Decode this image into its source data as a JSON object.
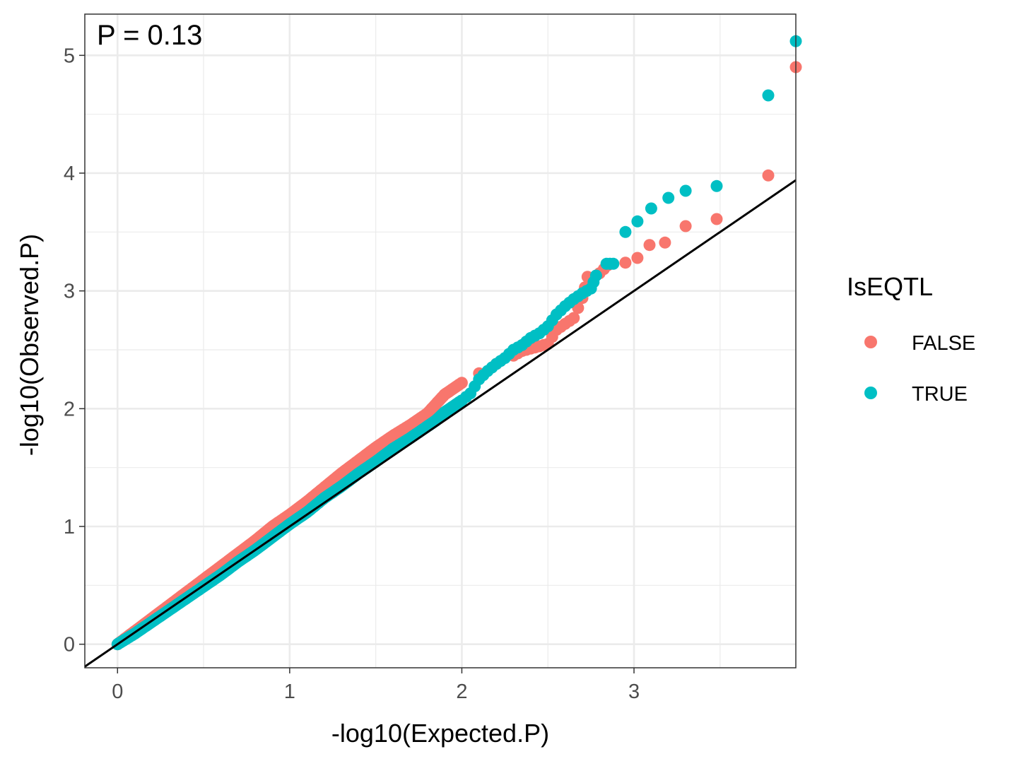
{
  "chart_data": {
    "type": "scatter",
    "title": "",
    "xlabel": "-log10(Expected.P)",
    "ylabel": "-log10(Observed.P)",
    "xlim": [
      -0.19,
      3.94
    ],
    "ylim": [
      -0.2,
      5.35
    ],
    "x_ticks": [
      0,
      1,
      2,
      3
    ],
    "y_ticks": [
      0,
      1,
      2,
      3,
      4,
      5
    ],
    "x_tick_labels": [
      "0",
      "1",
      "2",
      "3"
    ],
    "y_tick_labels": [
      "0",
      "1",
      "2",
      "3",
      "4",
      "5"
    ],
    "grid": true,
    "annotation": "P = 0.13",
    "reference_line": {
      "intercept": 0,
      "slope": 1,
      "color": "#000000"
    },
    "legend": {
      "title": "IsEQTL",
      "position": "right"
    },
    "series": [
      {
        "name": "FALSE",
        "color": "#F8766D",
        "points": [
          [
            0,
            0
          ],
          [
            0.1,
            0.11
          ],
          [
            0.2,
            0.22
          ],
          [
            0.3,
            0.33
          ],
          [
            0.4,
            0.44
          ],
          [
            0.5,
            0.55
          ],
          [
            0.6,
            0.66
          ],
          [
            0.7,
            0.77
          ],
          [
            0.8,
            0.88
          ],
          [
            0.9,
            1.0
          ],
          [
            1.0,
            1.1
          ],
          [
            1.1,
            1.21
          ],
          [
            1.2,
            1.33
          ],
          [
            1.3,
            1.45
          ],
          [
            1.4,
            1.56
          ],
          [
            1.5,
            1.67
          ],
          [
            1.6,
            1.77
          ],
          [
            1.7,
            1.86
          ],
          [
            1.8,
            1.96
          ],
          [
            1.9,
            2.12
          ],
          [
            2.0,
            2.22
          ],
          [
            2.1,
            2.3
          ],
          [
            2.2,
            2.38
          ],
          [
            2.3,
            2.45
          ],
          [
            2.35,
            2.49
          ],
          [
            2.4,
            2.51
          ],
          [
            2.45,
            2.53
          ],
          [
            2.5,
            2.55
          ],
          [
            2.55,
            2.67
          ],
          [
            2.6,
            2.72
          ],
          [
            2.65,
            2.77
          ],
          [
            2.7,
            2.94
          ],
          [
            2.73,
            3.12
          ],
          [
            2.8,
            3.15
          ],
          [
            2.85,
            3.22
          ],
          [
            2.95,
            3.24
          ],
          [
            3.02,
            3.28
          ],
          [
            3.09,
            3.39
          ],
          [
            3.18,
            3.41
          ],
          [
            3.3,
            3.55
          ],
          [
            3.48,
            3.61
          ],
          [
            3.78,
            3.98
          ],
          [
            3.94,
            4.9
          ]
        ]
      },
      {
        "name": "TRUE",
        "color": "#00BFC4",
        "points": [
          [
            0,
            0
          ],
          [
            0.1,
            0.09
          ],
          [
            0.2,
            0.19
          ],
          [
            0.3,
            0.29
          ],
          [
            0.4,
            0.39
          ],
          [
            0.5,
            0.49
          ],
          [
            0.6,
            0.59
          ],
          [
            0.7,
            0.7
          ],
          [
            0.8,
            0.8
          ],
          [
            0.9,
            0.91
          ],
          [
            1.0,
            1.02
          ],
          [
            1.1,
            1.12
          ],
          [
            1.2,
            1.24
          ],
          [
            1.3,
            1.34
          ],
          [
            1.4,
            1.45
          ],
          [
            1.5,
            1.55
          ],
          [
            1.6,
            1.66
          ],
          [
            1.7,
            1.75
          ],
          [
            1.8,
            1.85
          ],
          [
            1.85,
            1.9
          ],
          [
            1.9,
            1.97
          ],
          [
            2.0,
            2.07
          ],
          [
            2.05,
            2.13
          ],
          [
            2.1,
            2.25
          ],
          [
            2.15,
            2.32
          ],
          [
            2.2,
            2.38
          ],
          [
            2.25,
            2.43
          ],
          [
            2.3,
            2.5
          ],
          [
            2.35,
            2.54
          ],
          [
            2.4,
            2.6
          ],
          [
            2.45,
            2.64
          ],
          [
            2.5,
            2.7
          ],
          [
            2.55,
            2.8
          ],
          [
            2.6,
            2.87
          ],
          [
            2.65,
            2.93
          ],
          [
            2.7,
            2.98
          ],
          [
            2.75,
            3.02
          ],
          [
            2.78,
            3.13
          ],
          [
            2.84,
            3.23
          ],
          [
            2.88,
            3.23
          ],
          [
            2.95,
            3.5
          ],
          [
            3.02,
            3.59
          ],
          [
            3.1,
            3.7
          ],
          [
            3.2,
            3.79
          ],
          [
            3.3,
            3.85
          ],
          [
            3.48,
            3.89
          ],
          [
            3.78,
            4.66
          ],
          [
            3.94,
            5.12
          ]
        ]
      }
    ]
  }
}
